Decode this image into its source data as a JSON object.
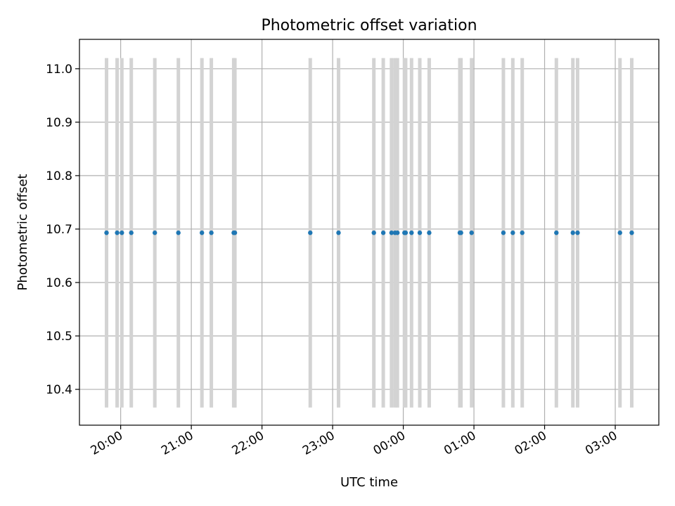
{
  "chart_data": {
    "type": "scatter",
    "title": "Photometric offset variation",
    "xlabel": "UTC time",
    "ylabel": "Photometric offset",
    "grid": true,
    "colors": {
      "marker": "#1f77b4",
      "errorbar": "#d3d3d3",
      "grid": "#b0b0b0"
    },
    "x_axis": {
      "unit": "UTC time (hh:mm)",
      "min": "19:25",
      "max": "03:37",
      "ticks": [
        "20:00",
        "21:00",
        "22:00",
        "23:00",
        "00:00",
        "01:00",
        "02:00",
        "03:00"
      ]
    },
    "y_axis": {
      "min": 10.333,
      "max": 11.055,
      "ticks": [
        "10.4",
        "10.5",
        "10.6",
        "10.7",
        "10.8",
        "10.9",
        "11.0"
      ]
    },
    "series": [
      {
        "x": [
          "19:48",
          "19:57",
          "20:01",
          "20:09",
          "20:29",
          "20:49",
          "21:09",
          "21:17",
          "21:36",
          "21:37",
          "22:41",
          "23:05",
          "23:35",
          "23:43",
          "23:50",
          "23:53",
          "23:55",
          "00:01",
          "00:02",
          "00:07",
          "00:14",
          "00:22",
          "00:48",
          "00:49",
          "00:58",
          "01:25",
          "01:33",
          "01:41",
          "02:10",
          "02:24",
          "02:28",
          "03:04",
          "03:14"
        ],
        "y": [
          10.693,
          10.693,
          10.693,
          10.693,
          10.693,
          10.693,
          10.693,
          10.693,
          10.693,
          10.693,
          10.693,
          10.693,
          10.693,
          10.693,
          10.693,
          10.693,
          10.693,
          10.693,
          10.693,
          10.693,
          10.693,
          10.693,
          10.693,
          10.693,
          10.693,
          10.693,
          10.693,
          10.693,
          10.693,
          10.693,
          10.693,
          10.693,
          10.693
        ],
        "yerr": 0.327
      }
    ]
  }
}
